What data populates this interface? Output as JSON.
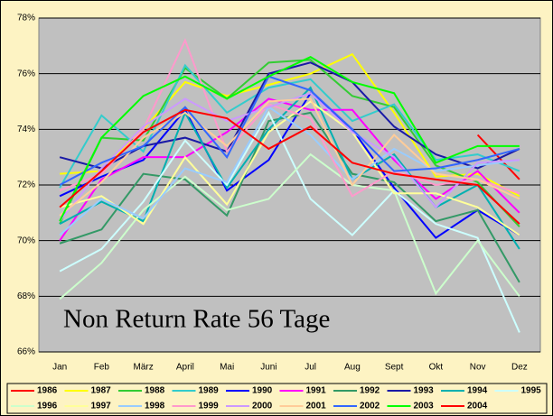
{
  "chart_data": {
    "type": "line",
    "title": "Non Return Rate 56 Tage",
    "categories": [
      "Jan",
      "Feb",
      "März",
      "April",
      "Mai",
      "Juni",
      "Jul",
      "Aug",
      "Sept",
      "Okt",
      "Nov",
      "Dez"
    ],
    "ylim": [
      66,
      78
    ],
    "yticks": [
      {
        "value": 66,
        "label": "66%"
      },
      {
        "value": 68,
        "label": "68%"
      },
      {
        "value": 70,
        "label": "70%"
      },
      {
        "value": 72,
        "label": "72%"
      },
      {
        "value": 74,
        "label": "74%"
      },
      {
        "value": 76,
        "label": "76%"
      },
      {
        "value": 78,
        "label": "78%"
      }
    ],
    "grid": true,
    "legend": "bottom",
    "series": [
      {
        "name": "1986",
        "color": "#ff0000",
        "values": [
          null,
          null,
          null,
          null,
          null,
          null,
          null,
          null,
          null,
          null,
          73.8,
          72.2
        ]
      },
      {
        "name": "1987",
        "color": "#ffff00",
        "values": [
          72.4,
          72.5,
          74.0,
          75.7,
          75.2,
          75.6,
          76.0,
          76.7,
          74.6,
          72.3,
          72.4,
          71.6
        ]
      },
      {
        "name": "1988",
        "color": "#33cc33",
        "values": [
          70.6,
          73.7,
          73.6,
          76.2,
          75.1,
          76.4,
          76.5,
          75.2,
          74.8,
          72.7,
          72.1,
          70.5
        ]
      },
      {
        "name": "1989",
        "color": "#33cccc",
        "values": [
          71.9,
          74.5,
          73.2,
          76.3,
          74.6,
          75.5,
          75.8,
          74.3,
          74.9,
          72.9,
          73.1,
          72.5
        ]
      },
      {
        "name": "1990",
        "color": "#0000ff",
        "values": [
          71.6,
          72.3,
          72.9,
          74.7,
          71.8,
          72.9,
          75.3,
          74.0,
          71.9,
          70.1,
          71.1,
          70.2
        ]
      },
      {
        "name": "1991",
        "color": "#ff00ff",
        "values": [
          70.0,
          72.2,
          73.0,
          73.0,
          73.9,
          75.1,
          74.7,
          74.7,
          72.9,
          71.5,
          72.5,
          71.0
        ]
      },
      {
        "name": "1992",
        "color": "#339966",
        "values": [
          69.9,
          70.4,
          72.4,
          72.2,
          70.9,
          74.3,
          74.6,
          72.4,
          72.1,
          70.7,
          71.1,
          68.5
        ]
      },
      {
        "name": "1993",
        "color": "#1a1aa6",
        "values": [
          73.0,
          72.6,
          73.4,
          73.7,
          73.2,
          76.0,
          76.4,
          75.7,
          74.1,
          73.1,
          72.6,
          73.3
        ]
      },
      {
        "name": "1994",
        "color": "#00b0b0",
        "values": [
          70.6,
          71.4,
          70.7,
          74.6,
          71.9,
          74.0,
          75.5,
          72.2,
          73.1,
          71.2,
          72.0,
          69.7
        ]
      },
      {
        "name": "1995",
        "color": "#ccffff",
        "values": [
          68.9,
          69.7,
          71.4,
          73.6,
          72.0,
          74.6,
          71.5,
          70.2,
          71.8,
          70.6,
          70.1,
          66.7
        ]
      },
      {
        "name": "1996",
        "color": "#ccffcc",
        "values": [
          67.9,
          69.2,
          71.1,
          72.3,
          71.1,
          71.5,
          73.1,
          72.0,
          71.8,
          68.1,
          70.0,
          68.0
        ]
      },
      {
        "name": "1997",
        "color": "#ffff99",
        "values": [
          71.2,
          71.6,
          70.6,
          73.0,
          71.3,
          73.9,
          75.0,
          73.9,
          71.7,
          71.7,
          71.2,
          70.2
        ]
      },
      {
        "name": "1998",
        "color": "#99ccff",
        "values": [
          70.2,
          71.5,
          70.8,
          72.6,
          72.1,
          74.8,
          73.8,
          72.2,
          73.3,
          72.5,
          72.7,
          72.9
        ]
      },
      {
        "name": "1999",
        "color": "#ff99cc",
        "values": [
          71.8,
          72.4,
          74.0,
          77.2,
          73.2,
          74.9,
          74.4,
          71.6,
          72.5,
          72.0,
          72.2,
          71.7
        ]
      },
      {
        "name": "2000",
        "color": "#cc99ff",
        "values": [
          70.7,
          72.6,
          74.1,
          75.1,
          74.3,
          74.8,
          75.3,
          73.9,
          73.0,
          71.2,
          72.8,
          72.9
        ]
      },
      {
        "name": "2001",
        "color": "#ffcc99",
        "values": [
          70.9,
          72.1,
          73.7,
          74.6,
          73.4,
          75.0,
          75.1,
          72.0,
          73.8,
          72.4,
          72.2,
          71.5
        ]
      },
      {
        "name": "2002",
        "color": "#3366ff",
        "values": [
          72.0,
          72.8,
          73.4,
          74.8,
          73.0,
          75.9,
          75.4,
          74.0,
          72.5,
          72.6,
          72.9,
          73.3
        ]
      },
      {
        "name": "2003",
        "color": "#00ff00",
        "values": [
          70.7,
          73.7,
          75.2,
          75.9,
          75.1,
          75.9,
          76.6,
          75.7,
          75.3,
          72.8,
          73.4,
          73.4
        ]
      },
      {
        "name": "2004",
        "color": "#ff0000",
        "values": [
          71.2,
          72.5,
          73.9,
          74.7,
          74.4,
          73.3,
          74.1,
          72.8,
          72.4,
          72.2,
          72.0,
          70.6
        ]
      }
    ]
  }
}
